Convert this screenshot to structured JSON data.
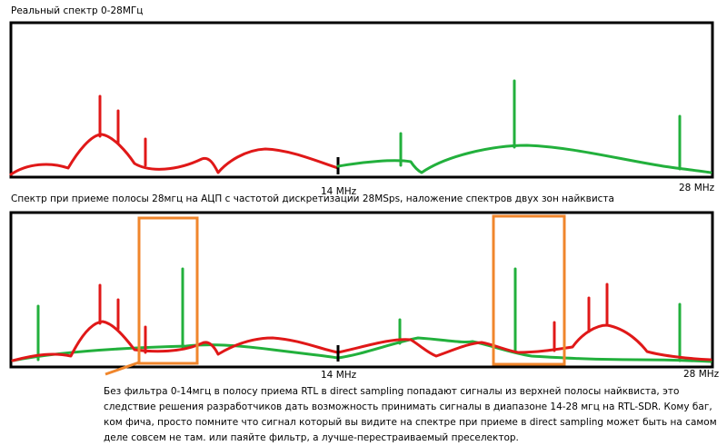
{
  "panel_top": {
    "title": "Реальный спектр 0-28МГц",
    "mid_label": "14 MHz",
    "end_label": "28 MHz"
  },
  "panel_bottom": {
    "title": "Спектр при приеме полосы 28мгц на АЦП с частотой дискретизации 28MSps, наложение спектров двух зон найквиста",
    "mid_label": "14 MHz",
    "end_label": "28 MHz"
  },
  "note": "Без фильтра 0-14мгц в полосу приема RTL в direct sampling попадают сигналы из верхней полосы найквиста, это следствие решения разработчиков дать возможность принимать сигналы в диапазоне 14-28 мгц на RTL-SDR. Кому баг, ком фича, просто помните что сигнал который вы видите на спектре при приеме в direct sampling может быть на самом деле совсем не там. или паяйте фильтр, а лучше-перестраиваемый преселектор.",
  "colors": {
    "lower_band": "#e01818",
    "upper_band": "#22b03c",
    "highlight": "#f0862c",
    "frame": "#000000"
  }
}
